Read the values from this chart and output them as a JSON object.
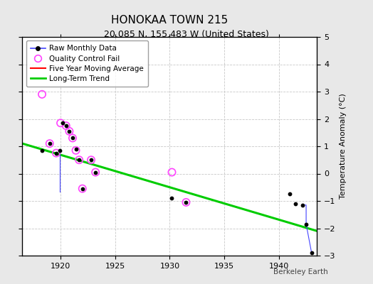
{
  "title": "HONOKAA TOWN 215",
  "subtitle": "20.085 N, 155.483 W (United States)",
  "ylabel": "Temperature Anomaly (°C)",
  "watermark": "Berkeley Earth",
  "xlim": [
    1916.5,
    1943.5
  ],
  "ylim": [
    -3,
    5
  ],
  "xticks": [
    1920,
    1925,
    1930,
    1935,
    1940
  ],
  "yticks": [
    -3,
    -2,
    -1,
    0,
    1,
    2,
    3,
    4,
    5
  ],
  "background_color": "#e8e8e8",
  "plot_bg_color": "#ffffff",
  "raw_data_x": [
    1918.3,
    1919.0,
    1919.6,
    1920.0,
    1920.5,
    1920.8,
    1921.1,
    1921.4,
    1921.7,
    1922.0,
    1922.8,
    1930.2,
    1941.5,
    1942.0,
    1942.5,
    1943.0
  ],
  "raw_data_y": [
    0.85,
    0.85,
    1.75,
    1.55,
    1.3,
    0.9,
    0.55,
    0.5,
    -0.55,
    -0.65,
    0.5,
    -0.9,
    -0.7,
    -1.15,
    -1.85,
    -2.9
  ],
  "qc_fail_x": [
    1918.3,
    1919.0,
    1919.6,
    1920.0,
    1920.5,
    1920.8,
    1921.1,
    1921.4,
    1921.7,
    1922.0,
    1922.8,
    1923.2,
    1930.2,
    1931.5
  ],
  "qc_fail_y": [
    2.9,
    1.1,
    0.75,
    1.85,
    1.75,
    1.55,
    1.3,
    0.85,
    0.5,
    -0.55,
    0.5,
    0.05,
    0.05,
    -1.05
  ],
  "extra_dots_x": [
    1918.3,
    1919.6,
    1920.0,
    1920.5,
    1920.8,
    1921.1,
    1921.4,
    1921.7,
    1922.0,
    1922.8,
    1923.2,
    1930.2,
    1941.0,
    1941.5
  ],
  "extra_dots_y": [
    0.85,
    0.75,
    1.85,
    1.75,
    1.55,
    1.3,
    0.85,
    0.5,
    -0.55,
    0.5,
    0.05,
    -0.9,
    -0.75,
    -1.1
  ],
  "connected_groups": [
    {
      "x": [
        1919.0,
        1919.0
      ],
      "y": [
        1.1,
        0.85
      ]
    },
    {
      "x": [
        1921.7,
        1921.7
      ],
      "y": [
        0.5,
        -0.55
      ]
    },
    {
      "x": [
        1922.0,
        1922.0
      ],
      "y": [
        -0.55,
        -0.65
      ]
    },
    {
      "x": [
        1942.5,
        1942.5,
        1943.0
      ],
      "y": [
        -1.85,
        -1.85,
        -2.9
      ]
    }
  ],
  "blue_line_groups": [
    {
      "x": [
        1919.0,
        1919.0
      ],
      "y": [
        0.85,
        0.85
      ]
    },
    {
      "x": [
        1920.0,
        1920.0,
        1920.0,
        1920.0
      ],
      "y": [
        0.85,
        1.55,
        1.3,
        0.9
      ]
    },
    {
      "x": [
        1942.0,
        1942.5,
        1943.0
      ],
      "y": [
        -1.15,
        -1.85,
        -2.9
      ]
    }
  ],
  "trend_x": [
    1916.5,
    1943.5
  ],
  "trend_y": [
    1.1,
    -2.1
  ],
  "raw_line_color": "#4444ff",
  "raw_dot_color": "#000000",
  "qc_circle_color": "#ff44ff",
  "trend_color": "#00cc00",
  "ma_color": "#ff0000",
  "grid_color": "#c8c8c8",
  "title_fontsize": 11,
  "subtitle_fontsize": 9,
  "tick_fontsize": 8,
  "ylabel_fontsize": 8
}
